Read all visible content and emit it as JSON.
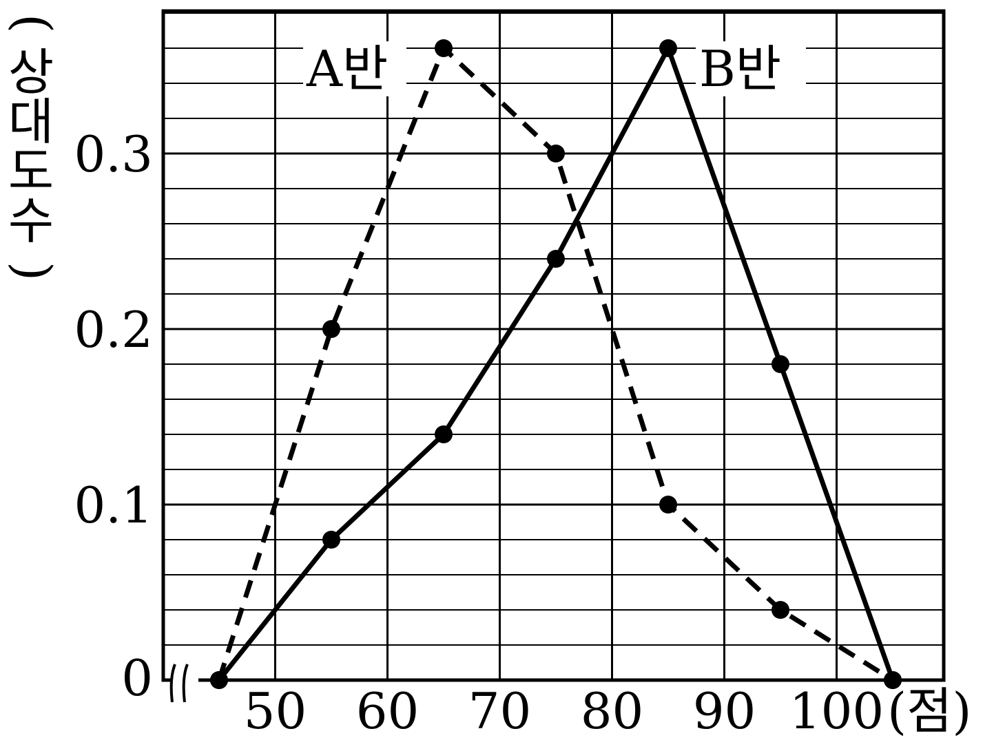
{
  "chart_data": {
    "type": "line",
    "title": "",
    "ylabel": "(상대도수)",
    "xlabel": "(점)",
    "x_ticks": [
      50,
      60,
      70,
      80,
      90,
      100
    ],
    "y_ticks": [
      "0.1",
      "0.2",
      "0.3"
    ],
    "y_zero_label": "0",
    "axis_break": true,
    "xlim": [
      40,
      110
    ],
    "ylim": [
      0,
      0.38
    ],
    "grid": true,
    "series": [
      {
        "name": "A반",
        "style": "dashed",
        "color": "#000000",
        "x": [
          45,
          55,
          65,
          75,
          85,
          95,
          105
        ],
        "y": [
          0,
          0.2,
          0.36,
          0.3,
          0.1,
          0.04,
          0
        ]
      },
      {
        "name": "B반",
        "style": "solid",
        "color": "#000000",
        "x": [
          45,
          55,
          65,
          75,
          85,
          95,
          105
        ],
        "y": [
          0,
          0.08,
          0.14,
          0.24,
          0.36,
          0.18,
          0
        ]
      }
    ]
  }
}
